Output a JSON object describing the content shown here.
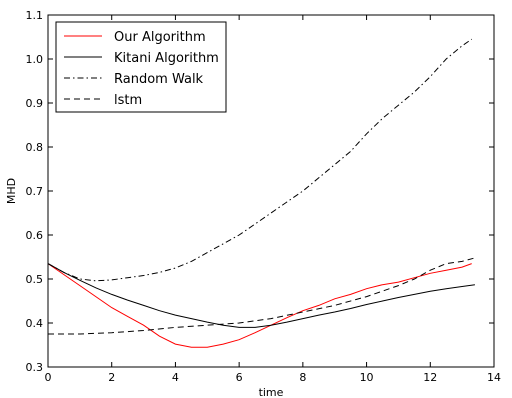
{
  "chart_data": {
    "type": "line",
    "title": "",
    "xlabel": "time",
    "ylabel": "MHD",
    "xlim": [
      0,
      14
    ],
    "ylim": [
      0.3,
      1.1
    ],
    "xticks": [
      "0",
      "2",
      "4",
      "6",
      "8",
      "10",
      "12",
      "14"
    ],
    "yticks": [
      "0.3",
      "0.4",
      "0.5",
      "0.6",
      "0.7",
      "0.8",
      "0.9",
      "1.0",
      "1.1"
    ],
    "grid": false,
    "legend_position": "top-left",
    "series": [
      {
        "name": "Our Algorithm",
        "color": "#ff0000",
        "dash": "solid",
        "x": [
          0,
          0.5,
          1,
          1.5,
          2,
          2.5,
          3,
          3.5,
          4,
          4.5,
          5,
          5.5,
          6,
          6.5,
          7,
          7.5,
          8,
          8.5,
          9,
          9.5,
          10,
          10.5,
          11,
          11.5,
          12,
          12.5,
          13,
          13.3
        ],
        "y": [
          0.535,
          0.51,
          0.485,
          0.46,
          0.435,
          0.415,
          0.395,
          0.37,
          0.352,
          0.345,
          0.345,
          0.352,
          0.362,
          0.378,
          0.395,
          0.412,
          0.428,
          0.44,
          0.455,
          0.465,
          0.478,
          0.487,
          0.493,
          0.503,
          0.513,
          0.52,
          0.527,
          0.535
        ]
      },
      {
        "name": "Kitani Algorithm",
        "color": "#000000",
        "dash": "solid",
        "x": [
          0,
          0.5,
          1,
          1.5,
          2,
          2.5,
          3,
          3.5,
          4,
          4.5,
          5,
          5.5,
          6,
          6.5,
          7,
          7.5,
          8,
          8.5,
          9,
          9.5,
          10,
          10.5,
          11,
          11.5,
          12,
          12.5,
          13,
          13.4
        ],
        "y": [
          0.535,
          0.515,
          0.497,
          0.48,
          0.465,
          0.452,
          0.44,
          0.428,
          0.418,
          0.41,
          0.402,
          0.395,
          0.39,
          0.39,
          0.395,
          0.402,
          0.41,
          0.418,
          0.425,
          0.433,
          0.442,
          0.45,
          0.458,
          0.465,
          0.472,
          0.478,
          0.483,
          0.487
        ]
      },
      {
        "name": "Random Walk",
        "color": "#000000",
        "dash": "dashdot",
        "x": [
          0,
          0.5,
          1,
          1.5,
          2,
          2.5,
          3,
          3.5,
          4,
          4.5,
          5,
          5.5,
          6,
          6.5,
          7,
          7.5,
          8,
          8.5,
          9,
          9.5,
          10,
          10.5,
          11,
          11.5,
          12,
          12.5,
          13,
          13.3
        ],
        "y": [
          0.535,
          0.515,
          0.5,
          0.496,
          0.498,
          0.503,
          0.508,
          0.515,
          0.525,
          0.54,
          0.56,
          0.58,
          0.6,
          0.625,
          0.65,
          0.675,
          0.7,
          0.73,
          0.76,
          0.79,
          0.83,
          0.865,
          0.895,
          0.925,
          0.96,
          1.0,
          1.03,
          1.045
        ]
      },
      {
        "name": "lstm",
        "color": "#000000",
        "dash": "dashed",
        "x": [
          0,
          1,
          2,
          3,
          4,
          5,
          6,
          7,
          8,
          9,
          10,
          11,
          11.5,
          12,
          12.5,
          13,
          13.4
        ],
        "y": [
          0.375,
          0.375,
          0.378,
          0.383,
          0.39,
          0.395,
          0.4,
          0.41,
          0.425,
          0.44,
          0.46,
          0.485,
          0.5,
          0.52,
          0.535,
          0.54,
          0.548
        ]
      }
    ]
  }
}
